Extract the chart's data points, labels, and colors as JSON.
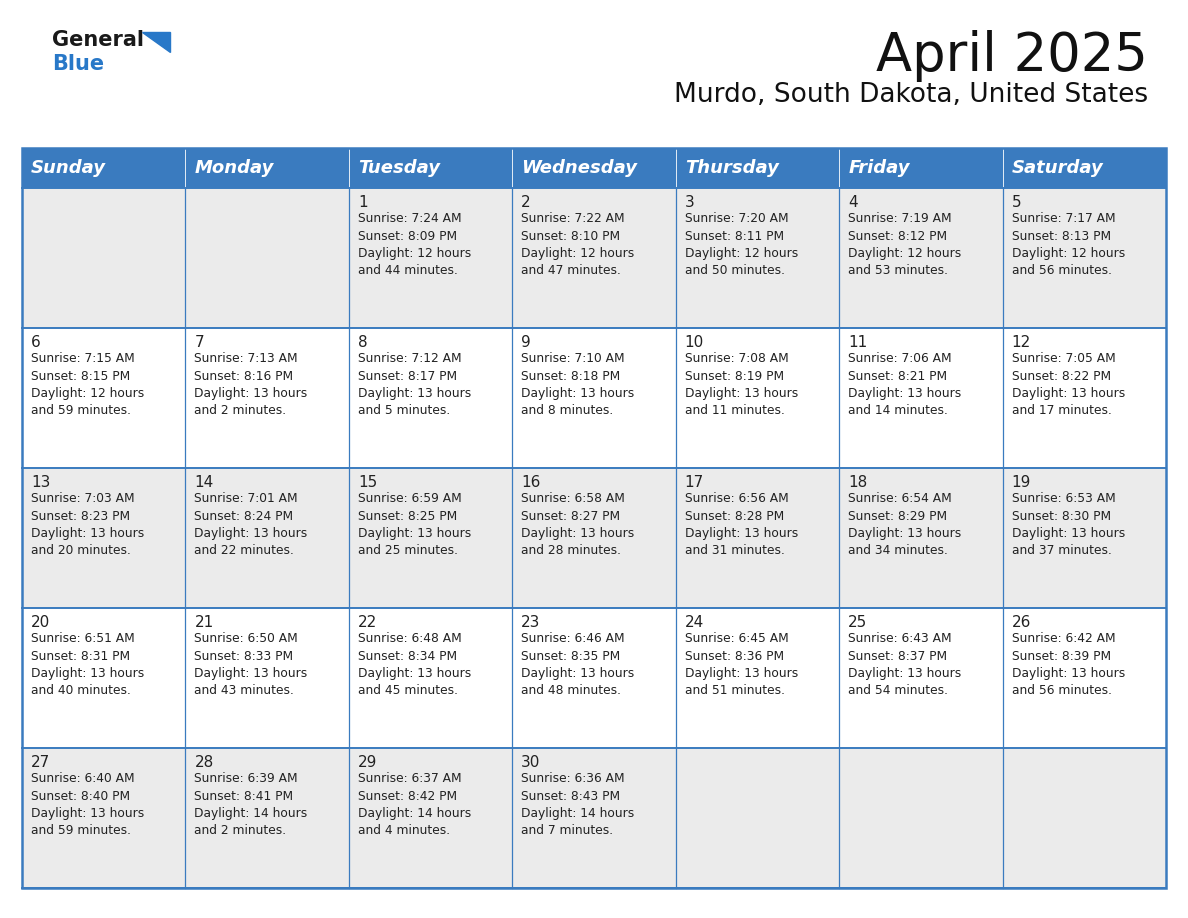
{
  "title": "April 2025",
  "subtitle": "Murdo, South Dakota, United States",
  "header_color": "#3A7BBF",
  "header_text_color": "#FFFFFF",
  "cell_bg_odd": "#EBEBEB",
  "cell_bg_even": "#FFFFFF",
  "border_color": "#3A7BBF",
  "text_color": "#222222",
  "day_names": [
    "Sunday",
    "Monday",
    "Tuesday",
    "Wednesday",
    "Thursday",
    "Friday",
    "Saturday"
  ],
  "title_fontsize": 38,
  "subtitle_fontsize": 19,
  "day_header_fontsize": 13,
  "day_num_fontsize": 11,
  "cell_fontsize": 8.8,
  "weeks": [
    [
      {
        "day": "",
        "info": ""
      },
      {
        "day": "",
        "info": ""
      },
      {
        "day": "1",
        "info": "Sunrise: 7:24 AM\nSunset: 8:09 PM\nDaylight: 12 hours\nand 44 minutes."
      },
      {
        "day": "2",
        "info": "Sunrise: 7:22 AM\nSunset: 8:10 PM\nDaylight: 12 hours\nand 47 minutes."
      },
      {
        "day": "3",
        "info": "Sunrise: 7:20 AM\nSunset: 8:11 PM\nDaylight: 12 hours\nand 50 minutes."
      },
      {
        "day": "4",
        "info": "Sunrise: 7:19 AM\nSunset: 8:12 PM\nDaylight: 12 hours\nand 53 minutes."
      },
      {
        "day": "5",
        "info": "Sunrise: 7:17 AM\nSunset: 8:13 PM\nDaylight: 12 hours\nand 56 minutes."
      }
    ],
    [
      {
        "day": "6",
        "info": "Sunrise: 7:15 AM\nSunset: 8:15 PM\nDaylight: 12 hours\nand 59 minutes."
      },
      {
        "day": "7",
        "info": "Sunrise: 7:13 AM\nSunset: 8:16 PM\nDaylight: 13 hours\nand 2 minutes."
      },
      {
        "day": "8",
        "info": "Sunrise: 7:12 AM\nSunset: 8:17 PM\nDaylight: 13 hours\nand 5 minutes."
      },
      {
        "day": "9",
        "info": "Sunrise: 7:10 AM\nSunset: 8:18 PM\nDaylight: 13 hours\nand 8 minutes."
      },
      {
        "day": "10",
        "info": "Sunrise: 7:08 AM\nSunset: 8:19 PM\nDaylight: 13 hours\nand 11 minutes."
      },
      {
        "day": "11",
        "info": "Sunrise: 7:06 AM\nSunset: 8:21 PM\nDaylight: 13 hours\nand 14 minutes."
      },
      {
        "day": "12",
        "info": "Sunrise: 7:05 AM\nSunset: 8:22 PM\nDaylight: 13 hours\nand 17 minutes."
      }
    ],
    [
      {
        "day": "13",
        "info": "Sunrise: 7:03 AM\nSunset: 8:23 PM\nDaylight: 13 hours\nand 20 minutes."
      },
      {
        "day": "14",
        "info": "Sunrise: 7:01 AM\nSunset: 8:24 PM\nDaylight: 13 hours\nand 22 minutes."
      },
      {
        "day": "15",
        "info": "Sunrise: 6:59 AM\nSunset: 8:25 PM\nDaylight: 13 hours\nand 25 minutes."
      },
      {
        "day": "16",
        "info": "Sunrise: 6:58 AM\nSunset: 8:27 PM\nDaylight: 13 hours\nand 28 minutes."
      },
      {
        "day": "17",
        "info": "Sunrise: 6:56 AM\nSunset: 8:28 PM\nDaylight: 13 hours\nand 31 minutes."
      },
      {
        "day": "18",
        "info": "Sunrise: 6:54 AM\nSunset: 8:29 PM\nDaylight: 13 hours\nand 34 minutes."
      },
      {
        "day": "19",
        "info": "Sunrise: 6:53 AM\nSunset: 8:30 PM\nDaylight: 13 hours\nand 37 minutes."
      }
    ],
    [
      {
        "day": "20",
        "info": "Sunrise: 6:51 AM\nSunset: 8:31 PM\nDaylight: 13 hours\nand 40 minutes."
      },
      {
        "day": "21",
        "info": "Sunrise: 6:50 AM\nSunset: 8:33 PM\nDaylight: 13 hours\nand 43 minutes."
      },
      {
        "day": "22",
        "info": "Sunrise: 6:48 AM\nSunset: 8:34 PM\nDaylight: 13 hours\nand 45 minutes."
      },
      {
        "day": "23",
        "info": "Sunrise: 6:46 AM\nSunset: 8:35 PM\nDaylight: 13 hours\nand 48 minutes."
      },
      {
        "day": "24",
        "info": "Sunrise: 6:45 AM\nSunset: 8:36 PM\nDaylight: 13 hours\nand 51 minutes."
      },
      {
        "day": "25",
        "info": "Sunrise: 6:43 AM\nSunset: 8:37 PM\nDaylight: 13 hours\nand 54 minutes."
      },
      {
        "day": "26",
        "info": "Sunrise: 6:42 AM\nSunset: 8:39 PM\nDaylight: 13 hours\nand 56 minutes."
      }
    ],
    [
      {
        "day": "27",
        "info": "Sunrise: 6:40 AM\nSunset: 8:40 PM\nDaylight: 13 hours\nand 59 minutes."
      },
      {
        "day": "28",
        "info": "Sunrise: 6:39 AM\nSunset: 8:41 PM\nDaylight: 14 hours\nand 2 minutes."
      },
      {
        "day": "29",
        "info": "Sunrise: 6:37 AM\nSunset: 8:42 PM\nDaylight: 14 hours\nand 4 minutes."
      },
      {
        "day": "30",
        "info": "Sunrise: 6:36 AM\nSunset: 8:43 PM\nDaylight: 14 hours\nand 7 minutes."
      },
      {
        "day": "",
        "info": ""
      },
      {
        "day": "",
        "info": ""
      },
      {
        "day": "",
        "info": ""
      }
    ]
  ]
}
